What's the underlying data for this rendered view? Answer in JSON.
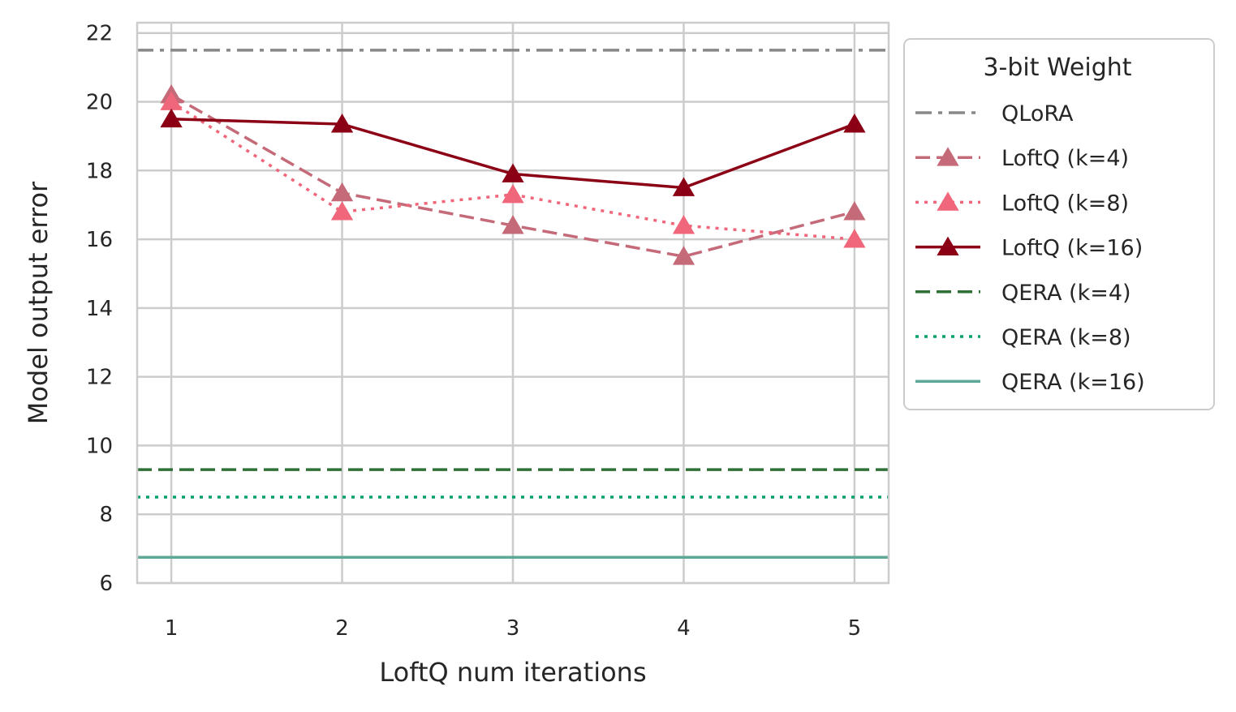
{
  "chart_data": {
    "type": "line",
    "title": "",
    "xlabel": "LoftQ num iterations",
    "ylabel": "Model output error",
    "x": [
      1,
      2,
      3,
      4,
      5
    ],
    "xticks": [
      "1",
      "2",
      "3",
      "4",
      "5"
    ],
    "yticks": [
      "6",
      "8",
      "10",
      "12",
      "14",
      "16",
      "18",
      "20",
      "22"
    ],
    "ylim": [
      6,
      22.3
    ],
    "xlim": [
      0.8,
      5.2
    ],
    "grid": true,
    "legend": {
      "title": "3-bit Weight",
      "position": "outside-right-top"
    },
    "series": [
      {
        "name": "QLoRA",
        "kind": "hline",
        "value": 21.5,
        "color": "#888888",
        "linestyle": "dashdot",
        "marker": "none"
      },
      {
        "name": "LoftQ (k=4)",
        "values": [
          20.2,
          17.35,
          16.4,
          15.5,
          16.8
        ],
        "color": "#c46a78",
        "linestyle": "dashed",
        "marker": "triangle"
      },
      {
        "name": "LoftQ (k=8)",
        "values": [
          20.0,
          16.8,
          17.3,
          16.4,
          16.0
        ],
        "color": "#f0667a",
        "linestyle": "dotted",
        "marker": "triangle"
      },
      {
        "name": "LoftQ (k=16)",
        "values": [
          19.5,
          19.35,
          17.9,
          17.5,
          19.35
        ],
        "color": "#8b0015",
        "linestyle": "solid",
        "marker": "triangle"
      },
      {
        "name": "QERA (k=4)",
        "kind": "hline",
        "value": 9.3,
        "color": "#2e7036",
        "linestyle": "dashed",
        "marker": "none"
      },
      {
        "name": "QERA (k=8)",
        "kind": "hline",
        "value": 8.5,
        "color": "#00a06a",
        "linestyle": "dotted",
        "marker": "none"
      },
      {
        "name": "QERA (k=16)",
        "kind": "hline",
        "value": 6.75,
        "color": "#5fa898",
        "linestyle": "solid",
        "marker": "none"
      }
    ]
  }
}
